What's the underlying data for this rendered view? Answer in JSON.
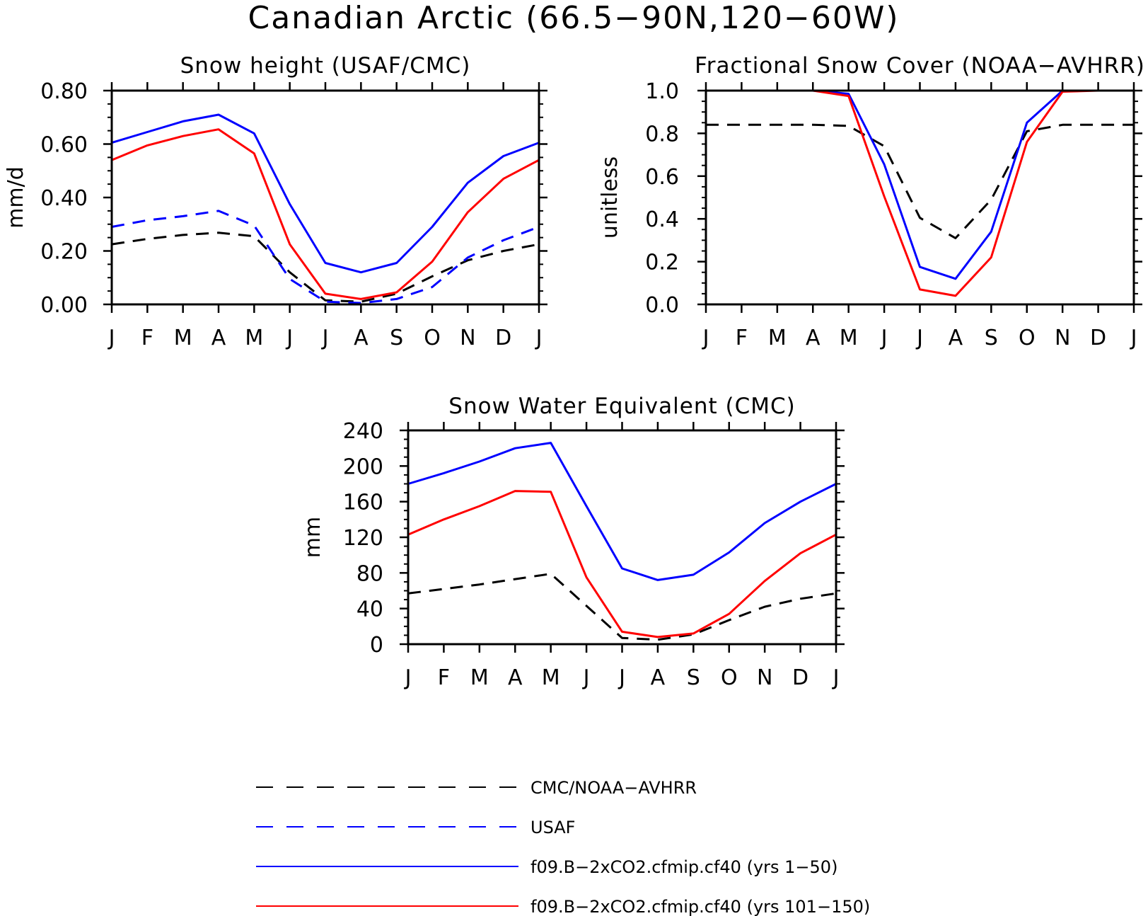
{
  "figure_title": "Canadian Arctic (66.5−90N,120−60W)",
  "colors": {
    "observed": "#000000",
    "usaf": "#0000ff",
    "model_early": "#0000ff",
    "model_late": "#ff0000"
  },
  "legend": [
    {
      "label": "CMC/NOAA−AVHRR",
      "color": "#000000",
      "style": "dashed"
    },
    {
      "label": "USAF",
      "color": "#0000ff",
      "style": "dashed"
    },
    {
      "label": "f09.B−2xCO2.cfmip.cf40 (yrs 1−50)",
      "color": "#0000ff",
      "style": "solid"
    },
    {
      "label": "f09.B−2xCO2.cfmip.cf40 (yrs 101−150)",
      "color": "#ff0000",
      "style": "solid"
    }
  ],
  "chart_data": [
    {
      "type": "line",
      "title": "Snow height (USAF/CMC)",
      "ylabel": "mm/d",
      "xlabel": "",
      "categories": [
        "J",
        "F",
        "M",
        "A",
        "M",
        "J",
        "J",
        "A",
        "S",
        "O",
        "N",
        "D",
        "J"
      ],
      "ylim": [
        0,
        0.8
      ],
      "yticks": [
        0,
        0.2,
        0.4,
        0.6,
        0.8
      ],
      "ytick_labels": [
        "0.00",
        "0.20",
        "0.40",
        "0.60",
        "0.80"
      ],
      "grid": false,
      "series": [
        {
          "name": "CMC/NOAA−AVHRR",
          "color": "#000000",
          "style": "dashed",
          "values": [
            0.225,
            0.245,
            0.26,
            0.268,
            0.255,
            0.12,
            0.015,
            0.01,
            0.04,
            0.105,
            0.165,
            0.2,
            0.225
          ]
        },
        {
          "name": "USAF",
          "color": "#0000ff",
          "style": "dashed",
          "values": [
            0.29,
            0.315,
            0.33,
            0.35,
            0.295,
            0.095,
            0.01,
            0.005,
            0.02,
            0.065,
            0.175,
            0.24,
            0.29
          ]
        },
        {
          "name": "f09.B−2xCO2.cfmip.cf40 (yrs 1−50)",
          "color": "#0000ff",
          "style": "solid",
          "values": [
            0.605,
            0.645,
            0.685,
            0.71,
            0.64,
            0.375,
            0.155,
            0.12,
            0.155,
            0.29,
            0.455,
            0.555,
            0.605
          ]
        },
        {
          "name": "f09.B−2xCO2.cfmip.cf40 (yrs 101−150)",
          "color": "#ff0000",
          "style": "solid",
          "values": [
            0.54,
            0.595,
            0.63,
            0.655,
            0.565,
            0.225,
            0.04,
            0.02,
            0.045,
            0.16,
            0.345,
            0.47,
            0.54
          ]
        }
      ]
    },
    {
      "type": "line",
      "title": "Fractional Snow Cover (NOAA−AVHRR)",
      "ylabel": "unitless",
      "xlabel": "",
      "categories": [
        "J",
        "F",
        "M",
        "A",
        "M",
        "J",
        "J",
        "A",
        "S",
        "O",
        "N",
        "D",
        "J"
      ],
      "ylim": [
        0,
        1.0
      ],
      "yticks": [
        0,
        0.2,
        0.4,
        0.6,
        0.8,
        1.0
      ],
      "ytick_labels": [
        "0.0",
        "0.2",
        "0.4",
        "0.6",
        "0.8",
        "1.0"
      ],
      "grid": false,
      "series": [
        {
          "name": "CMC/NOAA−AVHRR",
          "color": "#000000",
          "style": "dashed",
          "values": [
            0.84,
            0.84,
            0.84,
            0.84,
            0.835,
            0.74,
            0.405,
            0.31,
            0.49,
            0.81,
            0.84,
            0.84,
            0.84
          ]
        },
        {
          "name": "f09.B−2xCO2.cfmip.cf40 (yrs 1−50)",
          "color": "#0000ff",
          "style": "solid",
          "values": [
            1.0,
            1.0,
            1.0,
            1.0,
            0.985,
            0.655,
            0.175,
            0.12,
            0.34,
            0.85,
            1.0,
            1.0,
            1.0
          ]
        },
        {
          "name": "f09.B−2xCO2.cfmip.cf40 (yrs 101−150)",
          "color": "#ff0000",
          "style": "solid",
          "values": [
            1.0,
            1.0,
            1.0,
            1.0,
            0.975,
            0.505,
            0.07,
            0.04,
            0.22,
            0.76,
            0.995,
            1.0,
            1.0
          ]
        }
      ]
    },
    {
      "type": "line",
      "title": "Snow Water Equivalent (CMC)",
      "ylabel": "mm",
      "xlabel": "",
      "categories": [
        "J",
        "F",
        "M",
        "A",
        "M",
        "J",
        "J",
        "A",
        "S",
        "O",
        "N",
        "D",
        "J"
      ],
      "ylim": [
        0,
        240
      ],
      "yticks": [
        0,
        40,
        80,
        120,
        160,
        200,
        240
      ],
      "ytick_labels": [
        "0",
        "40",
        "80",
        "120",
        "160",
        "200",
        "240"
      ],
      "grid": false,
      "series": [
        {
          "name": "CMC/NOAA−AVHRR",
          "color": "#000000",
          "style": "dashed",
          "values": [
            57,
            62,
            67,
            73,
            79,
            43,
            7,
            5,
            11,
            27,
            42,
            51,
            57
          ]
        },
        {
          "name": "f09.B−2xCO2.cfmip.cf40 (yrs 1−50)",
          "color": "#0000ff",
          "style": "solid",
          "values": [
            180,
            192,
            205,
            220,
            226,
            155,
            85,
            72,
            78,
            103,
            136,
            160,
            180
          ]
        },
        {
          "name": "f09.B−2xCO2.cfmip.cf40 (yrs 101−150)",
          "color": "#ff0000",
          "style": "solid",
          "values": [
            123,
            140,
            155,
            172,
            171,
            75,
            14,
            8,
            12,
            34,
            71,
            102,
            123
          ]
        }
      ]
    }
  ]
}
